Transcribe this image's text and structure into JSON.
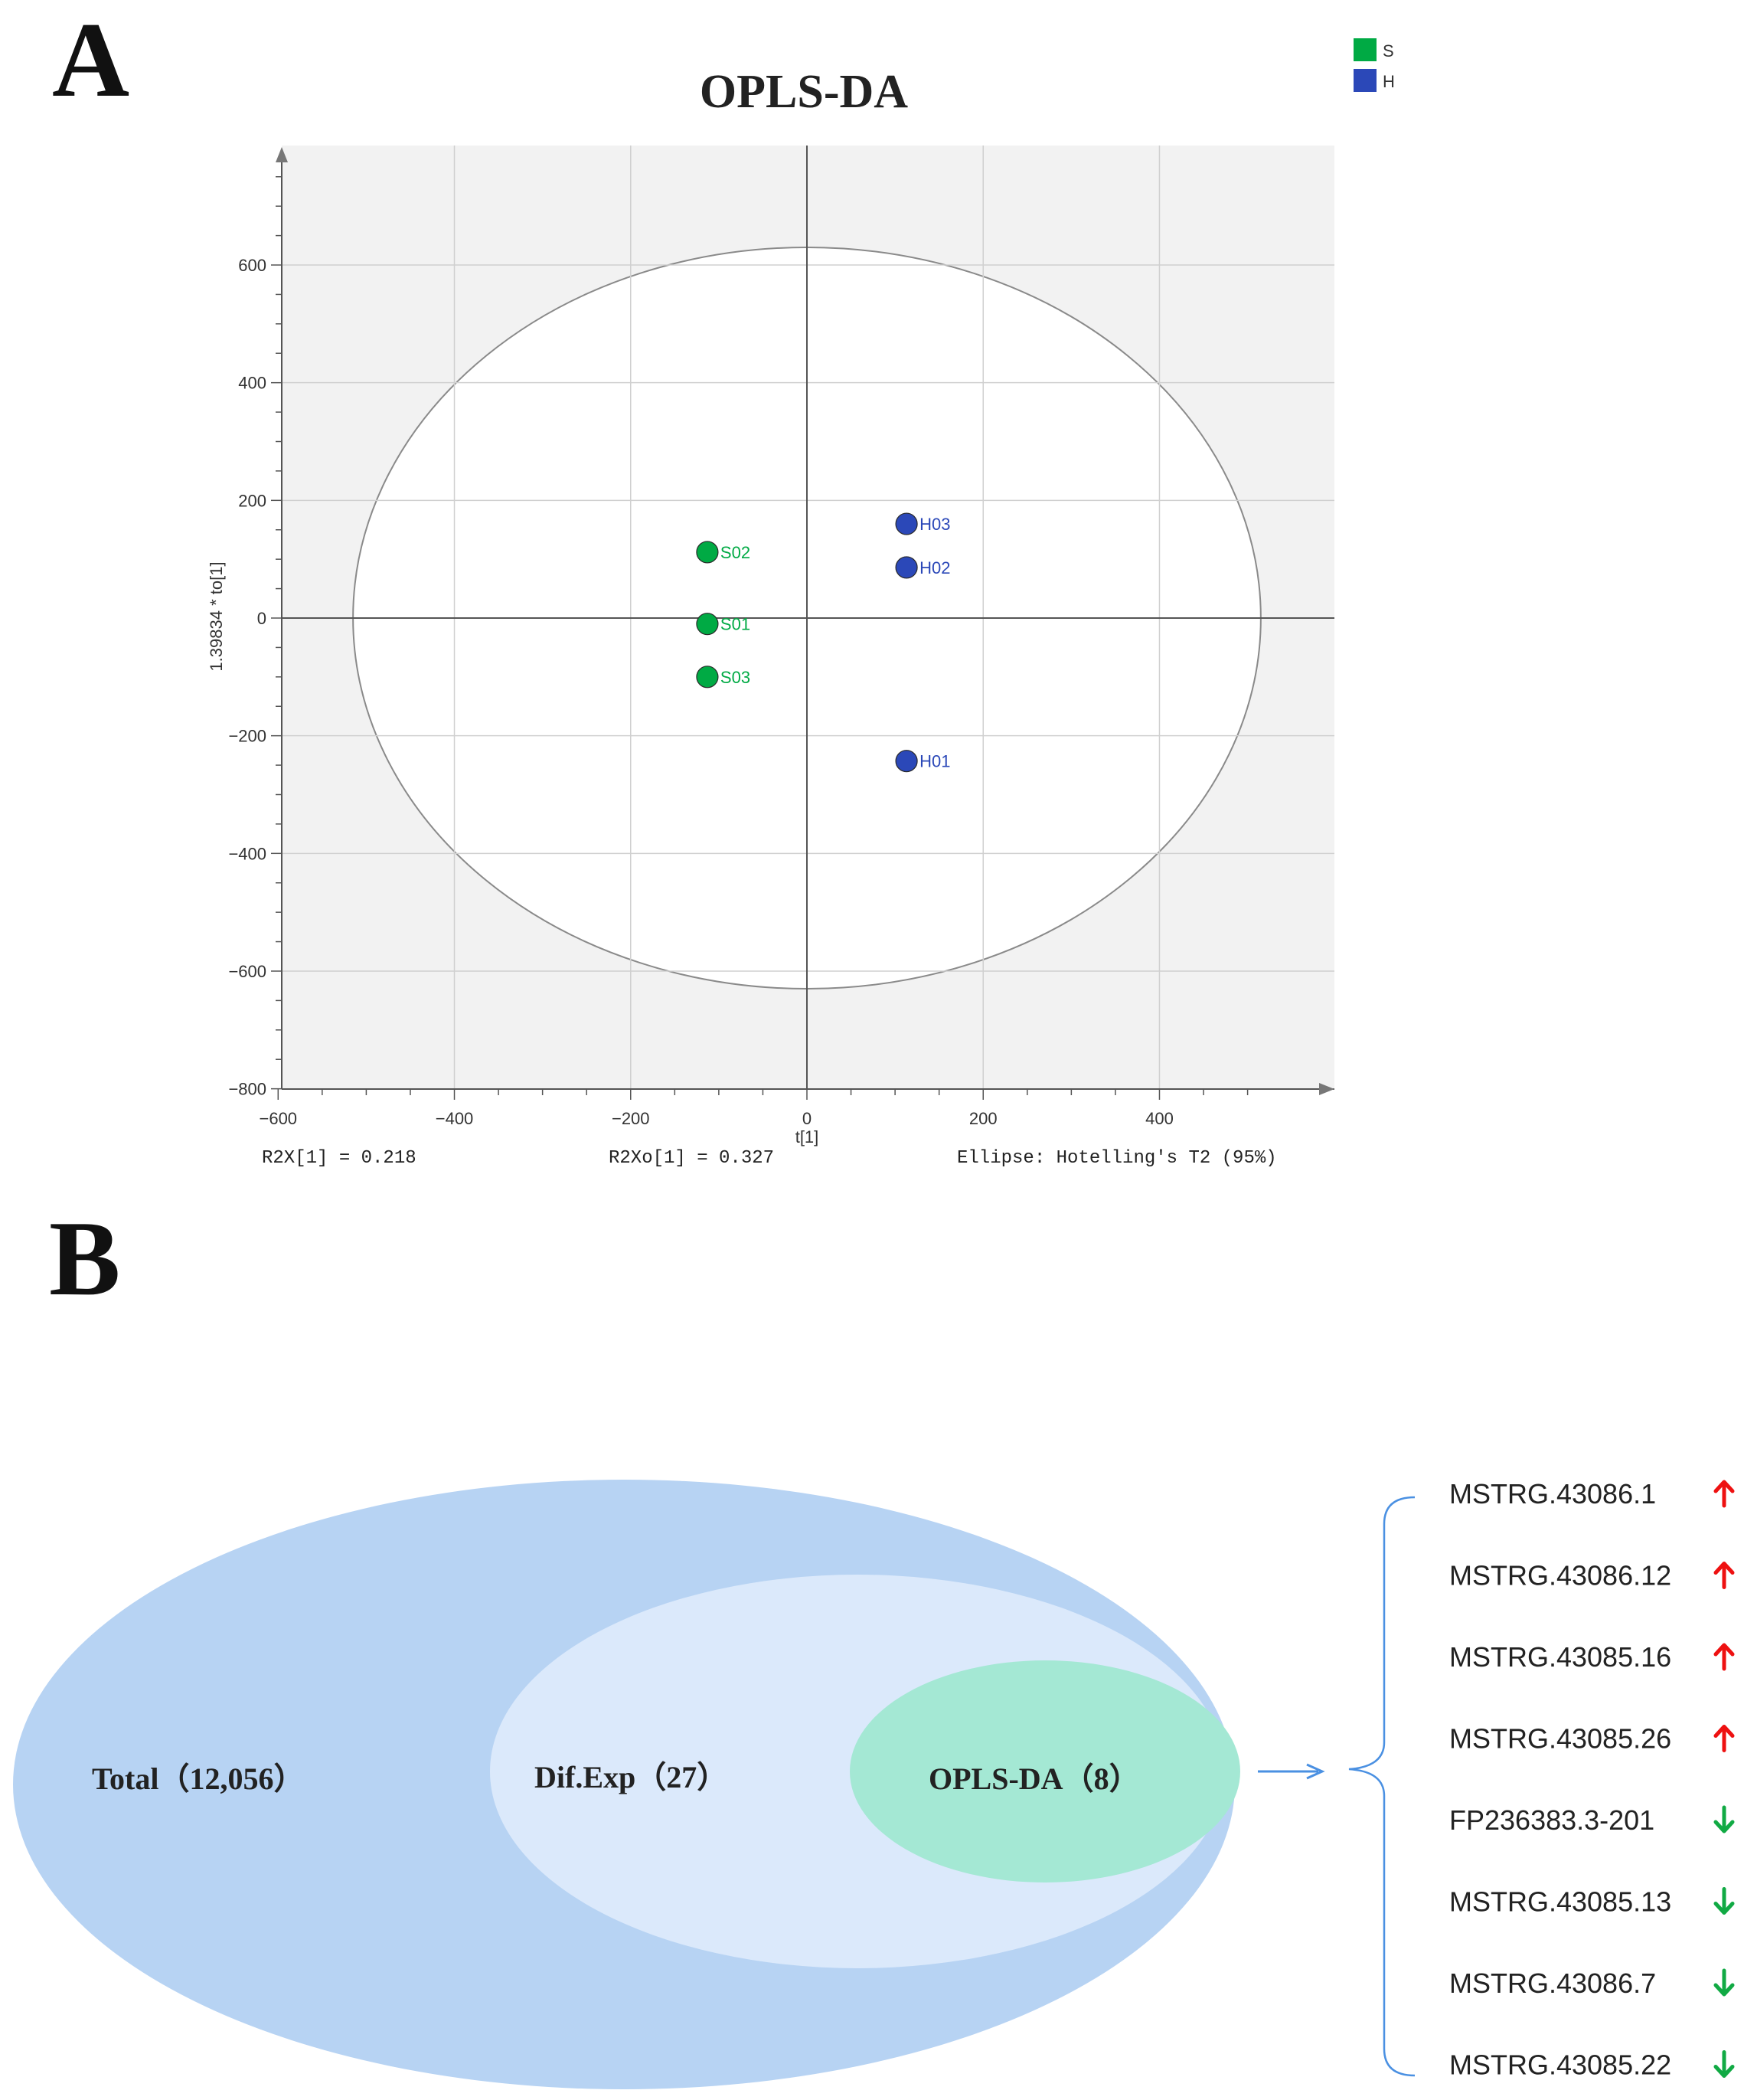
{
  "panel_a": {
    "label": "A"
  },
  "panel_b": {
    "label": "B"
  },
  "chart_data": {
    "type": "scatter",
    "title": "OPLS-DA",
    "xlabel": "t[1]",
    "ylabel": "1.39834 * to[1]",
    "xlim": [
      -600,
      600
    ],
    "ylim": [
      -800,
      800
    ],
    "xticks": [
      -600,
      -400,
      -200,
      0,
      200,
      400
    ],
    "yticks": [
      -800,
      -600,
      -400,
      -200,
      0,
      200,
      400,
      600
    ],
    "xtick_labels": [
      "−600",
      "−400",
      "−200",
      "0",
      "200",
      "400"
    ],
    "ytick_labels": [
      "−800",
      "−600",
      "−400",
      "−200",
      "0",
      "200",
      "400",
      "600"
    ],
    "grid": true,
    "legend_position": "top-right",
    "series": [
      {
        "name": "S",
        "color": "#00aa44",
        "points": [
          {
            "label": "S02",
            "x": -113,
            "y": 112
          },
          {
            "label": "S01",
            "x": -113,
            "y": -10
          },
          {
            "label": "S03",
            "x": -113,
            "y": -100
          }
        ]
      },
      {
        "name": "H",
        "color": "#2b48b8",
        "points": [
          {
            "label": "H03",
            "x": 113,
            "y": 160
          },
          {
            "label": "H02",
            "x": 113,
            "y": 86
          },
          {
            "label": "H01",
            "x": 113,
            "y": -243
          }
        ]
      }
    ],
    "ellipse": {
      "label": "Ellipse: Hotelling's T2 (95%)",
      "rx": 515,
      "ry": 630
    },
    "annotations": {
      "r2x": "R2X[1] = 0.218",
      "r2xo": "R2Xo[1] = 0.327",
      "ellipse": "Ellipse: Hotelling's T2 (95%)"
    }
  },
  "venn": {
    "total": "Total（12,056）",
    "difexp": "Dif.Exp（27）",
    "oplsda": "OPLS-DA（8）",
    "colors": {
      "outer": "#b7d3f3",
      "middle": "#dbe9fb",
      "inner": "#a4e8d4",
      "arrow": "#4a90e2"
    }
  },
  "gene_list": [
    {
      "name": "MSTRG.43086.1",
      "direction": "up",
      "color": "#ee1111"
    },
    {
      "name": "MSTRG.43086.12",
      "direction": "up",
      "color": "#ee1111"
    },
    {
      "name": "MSTRG.43085.16",
      "direction": "up",
      "color": "#ee1111"
    },
    {
      "name": "MSTRG.43085.26",
      "direction": "up",
      "color": "#ee1111"
    },
    {
      "name": "FP236383.3-201",
      "direction": "down",
      "color": "#11aa44"
    },
    {
      "name": "MSTRG.43085.13",
      "direction": "down",
      "color": "#11aa44"
    },
    {
      "name": "MSTRG.43086.7",
      "direction": "down",
      "color": "#11aa44"
    },
    {
      "name": "MSTRG.43085.22",
      "direction": "down",
      "color": "#11aa44"
    }
  ]
}
